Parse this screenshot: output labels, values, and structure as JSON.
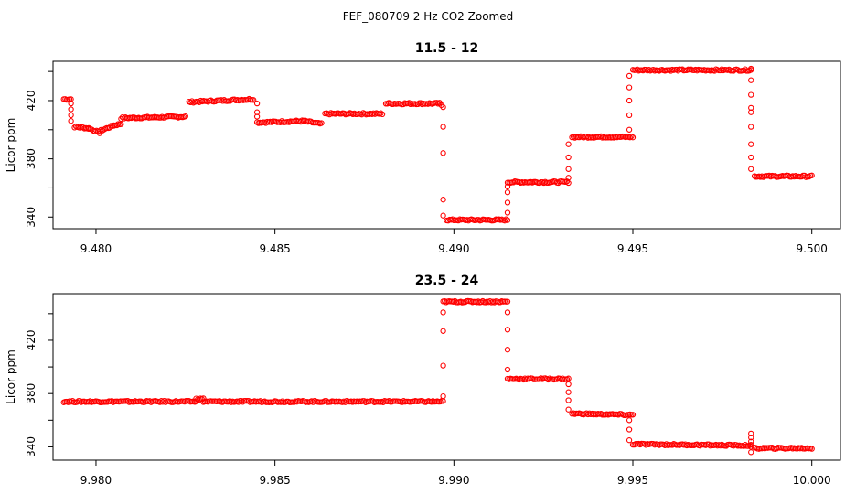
{
  "figure_title": "FEF_080709  2 Hz CO2 Zoomed",
  "chart_data": [
    {
      "type": "scatter",
      "title": "11.5 - 12",
      "xlabel": "",
      "ylabel": "Licor ppm",
      "xlim": [
        9.4788,
        9.5008
      ],
      "ylim": [
        332,
        447
      ],
      "x_ticks": [
        9.48,
        9.485,
        9.49,
        9.495,
        9.5
      ],
      "x_tick_labels": [
        "9.480",
        "9.485",
        "9.490",
        "9.495",
        "9.500"
      ],
      "y_ticks": [
        340,
        360,
        380,
        400,
        420,
        440
      ],
      "y_tick_labels": [
        "340",
        "",
        "380",
        "",
        "420",
        ""
      ],
      "marker": "open-circle",
      "color": "#ff0000",
      "series": [
        {
          "segments": [
            {
              "x0": 9.4791,
              "x1": 9.4793,
              "y0": 421,
              "y1": 421
            },
            {
              "x0": 9.4794,
              "x1": 9.4798,
              "y0": 402,
              "y1": 401
            },
            {
              "x0": 9.4798,
              "x1": 9.4801,
              "y0": 401,
              "y1": 398
            },
            {
              "x0": 9.4801,
              "x1": 9.4805,
              "y0": 399,
              "y1": 403
            },
            {
              "x0": 9.4805,
              "x1": 9.4807,
              "y0": 403,
              "y1": 404
            },
            {
              "x0": 9.4807,
              "x1": 9.4825,
              "y0": 408,
              "y1": 409
            },
            {
              "x0": 9.4826,
              "x1": 9.4844,
              "y0": 419,
              "y1": 421
            },
            {
              "x0": 9.4845,
              "x1": 9.4858,
              "y0": 405,
              "y1": 406
            },
            {
              "x0": 9.4858,
              "x1": 9.4863,
              "y0": 406,
              "y1": 404
            },
            {
              "x0": 9.4864,
              "x1": 9.488,
              "y0": 411,
              "y1": 411
            },
            {
              "x0": 9.4881,
              "x1": 9.4896,
              "y0": 418,
              "y1": 418
            },
            {
              "x0": 9.4896,
              "x1": 9.4897,
              "y0": 418,
              "y1": 416
            },
            {
              "x0": 9.4898,
              "x1": 9.4915,
              "y0": 338,
              "y1": 338
            },
            {
              "x0": 9.4915,
              "x1": 9.4932,
              "y0": 364,
              "y1": 364
            },
            {
              "x0": 9.4933,
              "x1": 9.495,
              "y0": 395,
              "y1": 395
            },
            {
              "x0": 9.495,
              "x1": 9.4983,
              "y0": 441,
              "y1": 441
            },
            {
              "x0": 9.4984,
              "x1": 9.5,
              "y0": 368,
              "y1": 368
            }
          ],
          "transitions": [
            {
              "x": 9.4793,
              "y": [
                418,
                414,
                410,
                406
              ]
            },
            {
              "x": 9.4845,
              "y": [
                418,
                412,
                409
              ]
            },
            {
              "x": 9.4897,
              "y": [
                402,
                384,
                352,
                341
              ]
            },
            {
              "x": 9.4915,
              "y": [
                343,
                350,
                357,
                361
              ]
            },
            {
              "x": 9.4932,
              "y": [
                367,
                373,
                381,
                390
              ]
            },
            {
              "x": 9.4949,
              "y": [
                400,
                410,
                420,
                429,
                437
              ]
            },
            {
              "x": 9.4983,
              "y": [
                442,
                434,
                424,
                415,
                412,
                402,
                390,
                381,
                373
              ]
            }
          ]
        }
      ]
    },
    {
      "type": "scatter",
      "title": "23.5 - 24",
      "xlabel": "",
      "ylabel": "Licor ppm",
      "xlim": [
        9.9788,
        10.0008
      ],
      "ylim": [
        330,
        455
      ],
      "x_ticks": [
        9.98,
        9.985,
        9.99,
        9.995,
        10.0
      ],
      "x_tick_labels": [
        "9.980",
        "9.985",
        "9.990",
        "9.995",
        "10.000"
      ],
      "y_ticks": [
        340,
        360,
        380,
        400,
        420,
        440
      ],
      "y_tick_labels": [
        "340",
        "",
        "380",
        "",
        "420",
        ""
      ],
      "marker": "open-circle",
      "color": "#ff0000",
      "series": [
        {
          "segments": [
            {
              "x0": 9.9791,
              "x1": 9.9828,
              "y0": 374,
              "y1": 374
            },
            {
              "x0": 9.9828,
              "x1": 9.983,
              "y0": 376,
              "y1": 376
            },
            {
              "x0": 9.983,
              "x1": 9.9897,
              "y0": 374,
              "y1": 374
            },
            {
              "x0": 9.9897,
              "x1": 9.9915,
              "y0": 449,
              "y1": 449
            },
            {
              "x0": 9.9915,
              "x1": 9.9932,
              "y0": 391,
              "y1": 391
            },
            {
              "x0": 9.9933,
              "x1": 9.995,
              "y0": 365,
              "y1": 364
            },
            {
              "x0": 9.995,
              "x1": 9.9983,
              "y0": 342,
              "y1": 341
            },
            {
              "x0": 9.9984,
              "x1": 10.0,
              "y0": 339,
              "y1": 339
            }
          ],
          "transitions": [
            {
              "x": 9.9897,
              "y": [
                378,
                401,
                427,
                441
              ]
            },
            {
              "x": 9.9915,
              "y": [
                441,
                428,
                413,
                398
              ]
            },
            {
              "x": 9.9932,
              "y": [
                387,
                381,
                375,
                368
              ]
            },
            {
              "x": 9.9949,
              "y": [
                360,
                353,
                345
              ]
            },
            {
              "x": 9.9983,
              "y": [
                350,
                347,
                344,
                340,
                336
              ]
            }
          ]
        }
      ]
    }
  ]
}
